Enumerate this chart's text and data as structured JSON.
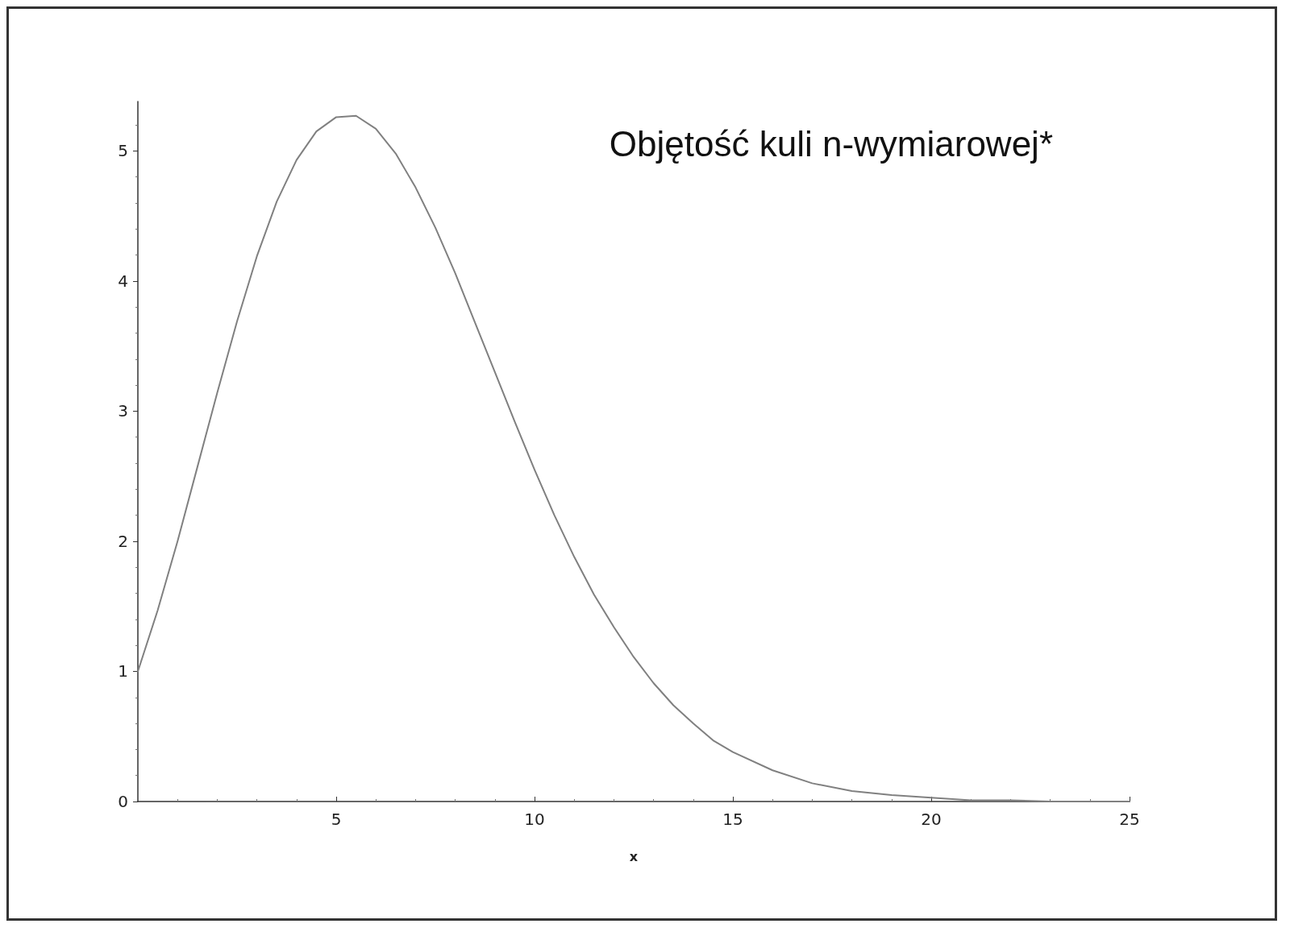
{
  "chart_data": {
    "type": "line",
    "title": "Objętość kuli n-wymiarowej*",
    "xlabel": "x",
    "x": [
      0,
      0.5,
      1,
      1.5,
      2,
      2.5,
      3,
      3.5,
      4,
      4.5,
      5,
      5.5,
      6,
      6.5,
      7,
      7.5,
      8,
      8.5,
      9,
      9.5,
      10,
      10.5,
      11,
      11.5,
      12,
      12.5,
      13,
      13.5,
      14,
      14.5,
      15,
      16,
      17,
      18,
      19,
      20,
      21,
      22,
      23,
      24,
      25
    ],
    "series": [
      {
        "color": "#808080",
        "values": [
          1,
          1.47,
          2,
          2.57,
          3.14,
          3.69,
          4.19,
          4.61,
          4.93,
          5.15,
          5.26,
          5.27,
          5.17,
          4.98,
          4.72,
          4.41,
          4.06,
          3.68,
          3.3,
          2.92,
          2.55,
          2.2,
          1.88,
          1.59,
          1.34,
          1.11,
          0.91,
          0.74,
          0.6,
          0.47,
          0.38,
          0.24,
          0.14,
          0.08,
          0.05,
          0.03,
          0.01,
          0.01,
          0,
          0,
          0
        ]
      }
    ],
    "xlim": [
      0,
      25
    ],
    "ylim": [
      0,
      5.38
    ],
    "xticks": [
      5,
      10,
      15,
      20,
      25
    ],
    "yticks": [
      0,
      1,
      2,
      3,
      4,
      5
    ],
    "grid": false,
    "marker": "none",
    "line_style": "solid"
  }
}
